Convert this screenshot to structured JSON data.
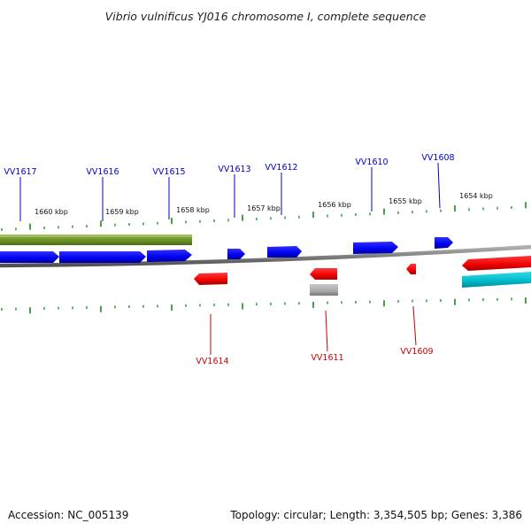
{
  "title": "Vibrio vulnificus YJ016 chromosome I, complete sequence",
  "footer": {
    "accession": "Accession: NC_005139",
    "summary": "Topology: circular; Length: 3,354,505 bp; Genes: 3,386"
  },
  "ruler_labels": [
    "1660 kbp",
    "1659 kbp",
    "1658 kbp",
    "1657 kbp",
    "1656 kbp",
    "1655 kbp",
    "1654 kbp"
  ],
  "genes_forward": [
    "VV1617",
    "VV1616",
    "VV1615",
    "VV1613",
    "VV1612",
    "VV1610",
    "VV1608"
  ],
  "genes_reverse": [
    "VV1614",
    "VV1611",
    "VV1609"
  ],
  "colors": {
    "forward_gene": "#0000ee",
    "reverse_gene": "#ee0000",
    "forward_label": "#0000cc",
    "reverse_label": "#cc0000",
    "olive_feature": "#6b8e23",
    "cyan_feature": "#00b8c8",
    "grey_feature": "#a0a0a0",
    "tick": "#1a8a1a",
    "backbone": "#808080"
  }
}
